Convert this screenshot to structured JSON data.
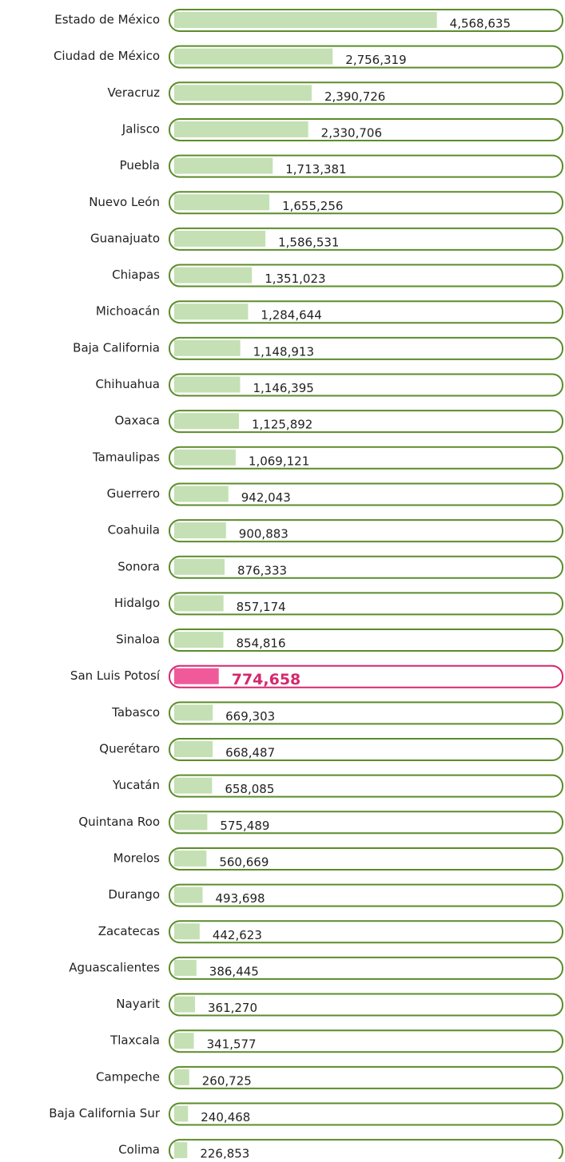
{
  "chart_data": {
    "type": "bar",
    "orientation": "horizontal",
    "categories": [
      "Estado de México",
      "Ciudad de México",
      "Veracruz",
      "Jalisco",
      "Puebla",
      "Nuevo León",
      "Guanajuato",
      "Chiapas",
      "Michoacán",
      "Baja California",
      "Chihuahua",
      "Oaxaca",
      "Tamaulipas",
      "Guerrero",
      "Coahuila",
      "Sonora",
      "Hidalgo",
      "Sinaloa",
      "San Luis Potosí",
      "Tabasco",
      "Querétaro",
      "Yucatán",
      "Quintana Roo",
      "Morelos",
      "Durango",
      "Zacatecas",
      "Aguascalientes",
      "Nayarit",
      "Tlaxcala",
      "Campeche",
      "Baja California Sur",
      "Colima"
    ],
    "values": [
      4568635,
      2756319,
      2390726,
      2330706,
      1713381,
      1655256,
      1586531,
      1351023,
      1284644,
      1148913,
      1146395,
      1125892,
      1069121,
      942043,
      900883,
      876333,
      857174,
      854816,
      774658,
      669303,
      668487,
      658085,
      575489,
      560669,
      493698,
      442623,
      386445,
      361270,
      341577,
      260725,
      240468,
      226853
    ],
    "value_labels": [
      "4,568,635",
      "2,756,319",
      "2,390,726",
      "2,330,706",
      "1,713,381",
      "1,655,256",
      "1,586,531",
      "1,351,023",
      "1,284,644",
      "1,148,913",
      "1,146,395",
      "1,125,892",
      "1,069,121",
      "942,043",
      "900,883",
      "876,333",
      "857,174",
      "854,816",
      "774,658",
      "669,303",
      "668,487",
      "658,085",
      "575,489",
      "560,669",
      "493,698",
      "442,623",
      "386,445",
      "361,270",
      "341,577",
      "260,725",
      "240,468",
      "226,853"
    ],
    "xlim": [
      0,
      6700000
    ],
    "color": "#c5e0b4",
    "outline_color": "#5b8c2a",
    "highlight": {
      "index": 18,
      "color": "#f05a9a",
      "outline_color": "#d6286e"
    }
  }
}
